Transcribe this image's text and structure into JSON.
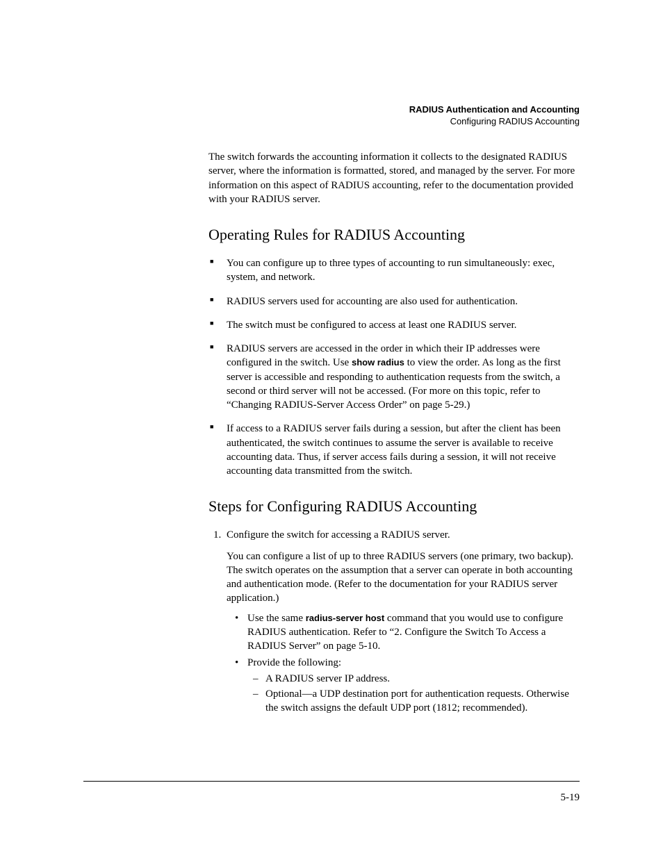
{
  "header": {
    "title": "RADIUS Authentication and Accounting",
    "subtitle": "Configuring RADIUS Accounting"
  },
  "intro": "The switch forwards the accounting information it collects to the designated RADIUS server, where the information is formatted, stored, and managed by the server. For more information on this aspect of RADIUS accounting, refer to the documentation provided with your RADIUS server.",
  "section1": {
    "heading": "Operating Rules for RADIUS Accounting",
    "items": [
      "You can configure up to three types of accounting to run simultaneously: exec, system, and network.",
      "RADIUS servers used for accounting are also used for authentication.",
      "The switch must be configured to access at least one RADIUS server."
    ],
    "item4_pre": "RADIUS servers are accessed in the order in which their IP addresses were configured in the switch. Use ",
    "item4_bold": "show radius",
    "item4_post": " to view the order. As long as the first server is accessible and responding to authentication requests from the switch, a second or third server will not be accessed. (For more on this topic, refer to “Changing RADIUS-Server Access Order” on page 5-29.)",
    "item5": "If access to a RADIUS server fails during a session, but after the client has been authenticated, the switch continues to assume the server is available to receive accounting data. Thus, if server access fails during a session, it will not receive accounting data transmitted from the switch."
  },
  "section2": {
    "heading": "Steps for Configuring RADIUS Accounting",
    "step1_title": "Configure the switch for accessing a RADIUS server.",
    "step1_para": "You can configure a list of up to three RADIUS servers (one primary, two backup). The switch operates on the assumption that a server can operate in both accounting and authentication mode. (Refer to the documentation for your RADIUS server application.)",
    "bullet1_pre": "Use the same ",
    "bullet1_bold": "radius-server host",
    "bullet1_post": " command that you would use to configure RADIUS authentication. Refer to “2. Configure the Switch To Access a RADIUS Server” on page 5-10.",
    "bullet2": "Provide the following:",
    "dash1": "A RADIUS server IP address.",
    "dash2": "Optional—a UDP destination port for authentication requests. Otherwise the switch assigns the default UDP port (1812; recommended)."
  },
  "page_number": "5-19"
}
